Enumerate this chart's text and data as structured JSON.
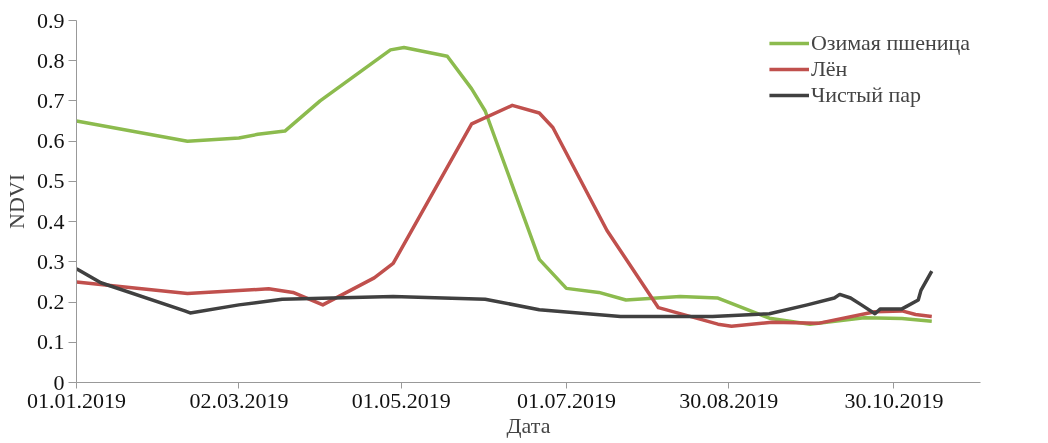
{
  "chart_data": {
    "type": "line",
    "xlabel": "Дата",
    "ylabel": "NDVI",
    "xlim": [
      "2019-01-01",
      "2019-12-01"
    ],
    "xticks": [
      {
        "value": "2019-01-01",
        "label": "01.01.2019"
      },
      {
        "value": "2019-03-02",
        "label": "02.03.2019"
      },
      {
        "value": "2019-05-01",
        "label": "01.05.2019"
      },
      {
        "value": "2019-07-01",
        "label": "01.07.2019"
      },
      {
        "value": "2019-08-30",
        "label": "30.08.2019"
      },
      {
        "value": "2019-10-30",
        "label": "30.10.2019"
      }
    ],
    "ylim": [
      0,
      0.9
    ],
    "yticks": [
      0,
      0.1,
      0.2,
      0.3,
      0.4,
      0.5,
      0.6,
      0.7,
      0.8,
      0.9
    ],
    "grid": false,
    "legend": "top right",
    "marker": "none",
    "line_style": "solid",
    "series": [
      {
        "name": "Озимая пшеница",
        "color": "#8cbb4e",
        "x": [
          "2019-01-01",
          "2019-02-11",
          "2019-03-02",
          "2019-03-09",
          "2019-03-19",
          "2019-04-01",
          "2019-04-27",
          "2019-05-02",
          "2019-05-18",
          "2019-05-27",
          "2019-06-01",
          "2019-06-21",
          "2019-07-01",
          "2019-07-13",
          "2019-07-23",
          "2019-08-12",
          "2019-08-26",
          "2019-09-14",
          "2019-09-29",
          "2019-10-19",
          "2019-11-02",
          "2019-11-13"
        ],
        "values": [
          0.65,
          0.6,
          0.608,
          0.617,
          0.625,
          0.7,
          0.827,
          0.833,
          0.811,
          0.73,
          0.675,
          0.306,
          0.234,
          0.224,
          0.205,
          0.214,
          0.21,
          0.16,
          0.145,
          0.161,
          0.159,
          0.152
        ]
      },
      {
        "name": "Лён",
        "color": "#c0504d",
        "x": [
          "2019-01-01",
          "2019-02-11",
          "2019-03-13",
          "2019-03-22",
          "2019-04-02",
          "2019-04-21",
          "2019-04-28",
          "2019-05-27",
          "2019-06-11",
          "2019-06-21",
          "2019-06-26",
          "2019-07-16",
          "2019-08-04",
          "2019-08-26",
          "2019-08-31",
          "2019-09-15",
          "2019-10-02",
          "2019-10-23",
          "2019-11-02",
          "2019-11-07",
          "2019-11-13"
        ],
        "values": [
          0.25,
          0.221,
          0.233,
          0.224,
          0.193,
          0.26,
          0.296,
          0.643,
          0.689,
          0.67,
          0.634,
          0.378,
          0.186,
          0.145,
          0.14,
          0.15,
          0.147,
          0.176,
          0.178,
          0.169,
          0.164
        ]
      },
      {
        "name": "Чистый пар",
        "color": "#404040",
        "x": [
          "2019-01-01",
          "2019-01-10",
          "2019-02-10",
          "2019-02-12",
          "2019-03-02",
          "2019-03-18",
          "2019-04-28",
          "2019-06-01",
          "2019-06-21",
          "2019-07-21",
          "2019-08-24",
          "2019-09-14",
          "2019-09-28",
          "2019-10-08",
          "2019-10-10",
          "2019-10-14",
          "2019-10-18",
          "2019-10-23",
          "2019-10-25",
          "2019-11-02",
          "2019-11-08",
          "2019-11-09",
          "2019-11-13"
        ],
        "values": [
          0.283,
          0.248,
          0.178,
          0.173,
          0.193,
          0.207,
          0.214,
          0.207,
          0.181,
          0.164,
          0.164,
          0.171,
          0.193,
          0.21,
          0.219,
          0.21,
          0.193,
          0.171,
          0.183,
          0.183,
          0.205,
          0.229,
          0.277
        ]
      }
    ]
  }
}
